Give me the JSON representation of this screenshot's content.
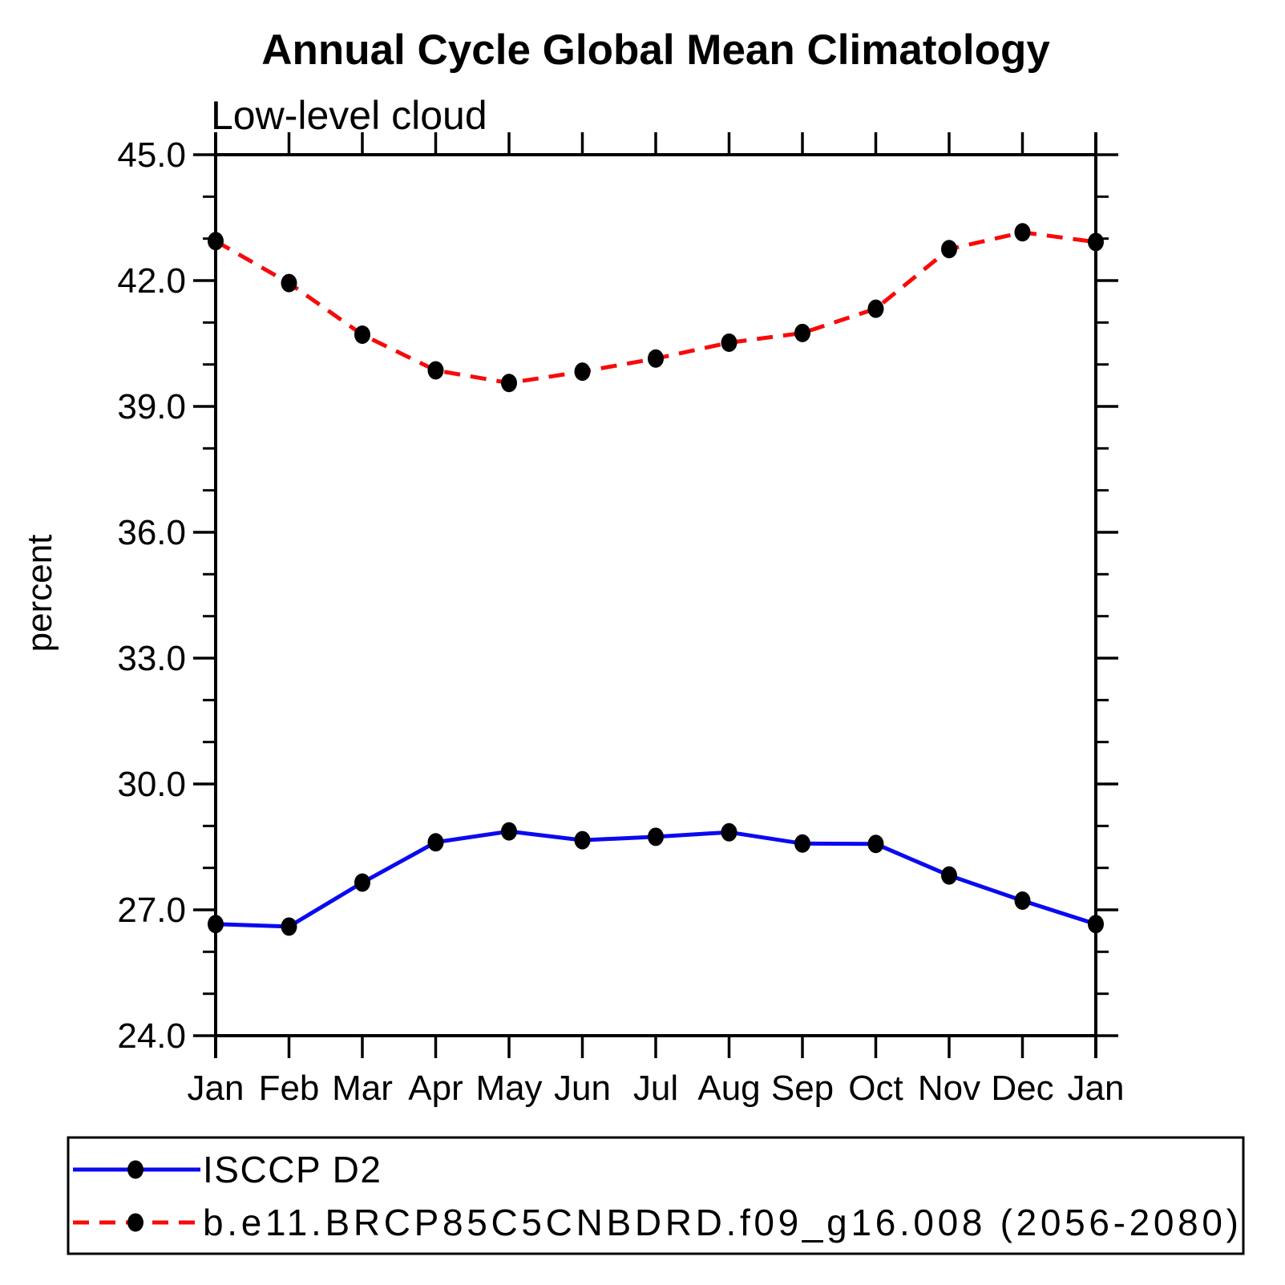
{
  "chart_data": {
    "type": "line",
    "title": "Annual Cycle Global Mean Climatology",
    "subtitle": "Low-level cloud",
    "xlabel": "",
    "ylabel": "percent",
    "categories": [
      "Jan",
      "Feb",
      "Mar",
      "Apr",
      "May",
      "Jun",
      "Jul",
      "Aug",
      "Sep",
      "Oct",
      "Nov",
      "Dec",
      "Jan"
    ],
    "ylim": [
      24.0,
      45.0
    ],
    "y_major_tick_step": 3.0,
    "y_minor_tick_step": 1.0,
    "y_tick_labels": [
      "24.0",
      "27.0",
      "30.0",
      "33.0",
      "36.0",
      "39.0",
      "42.0",
      "45.0"
    ],
    "grid": false,
    "legend_position": "bottom-left-box",
    "axis_color": "#000000",
    "series": [
      {
        "name": "ISCCP D2",
        "color": "#0a0af0",
        "line_style": "solid",
        "marker": "filled-circle",
        "marker_color": "#000000",
        "values": [
          26.66,
          26.6,
          27.65,
          28.61,
          28.87,
          28.66,
          28.74,
          28.85,
          28.58,
          28.57,
          27.82,
          27.22,
          26.66
        ]
      },
      {
        "name": "b.e11.BRCP85C5CNBDRD.f09_g16.008 (2056-2080)",
        "color": "#f80a0a",
        "line_style": "dashed",
        "marker": "filled-circle",
        "marker_color": "#000000",
        "values": [
          42.94,
          41.94,
          40.71,
          39.86,
          39.56,
          39.83,
          40.14,
          40.52,
          40.75,
          41.33,
          42.75,
          43.15,
          42.92
        ]
      }
    ]
  }
}
